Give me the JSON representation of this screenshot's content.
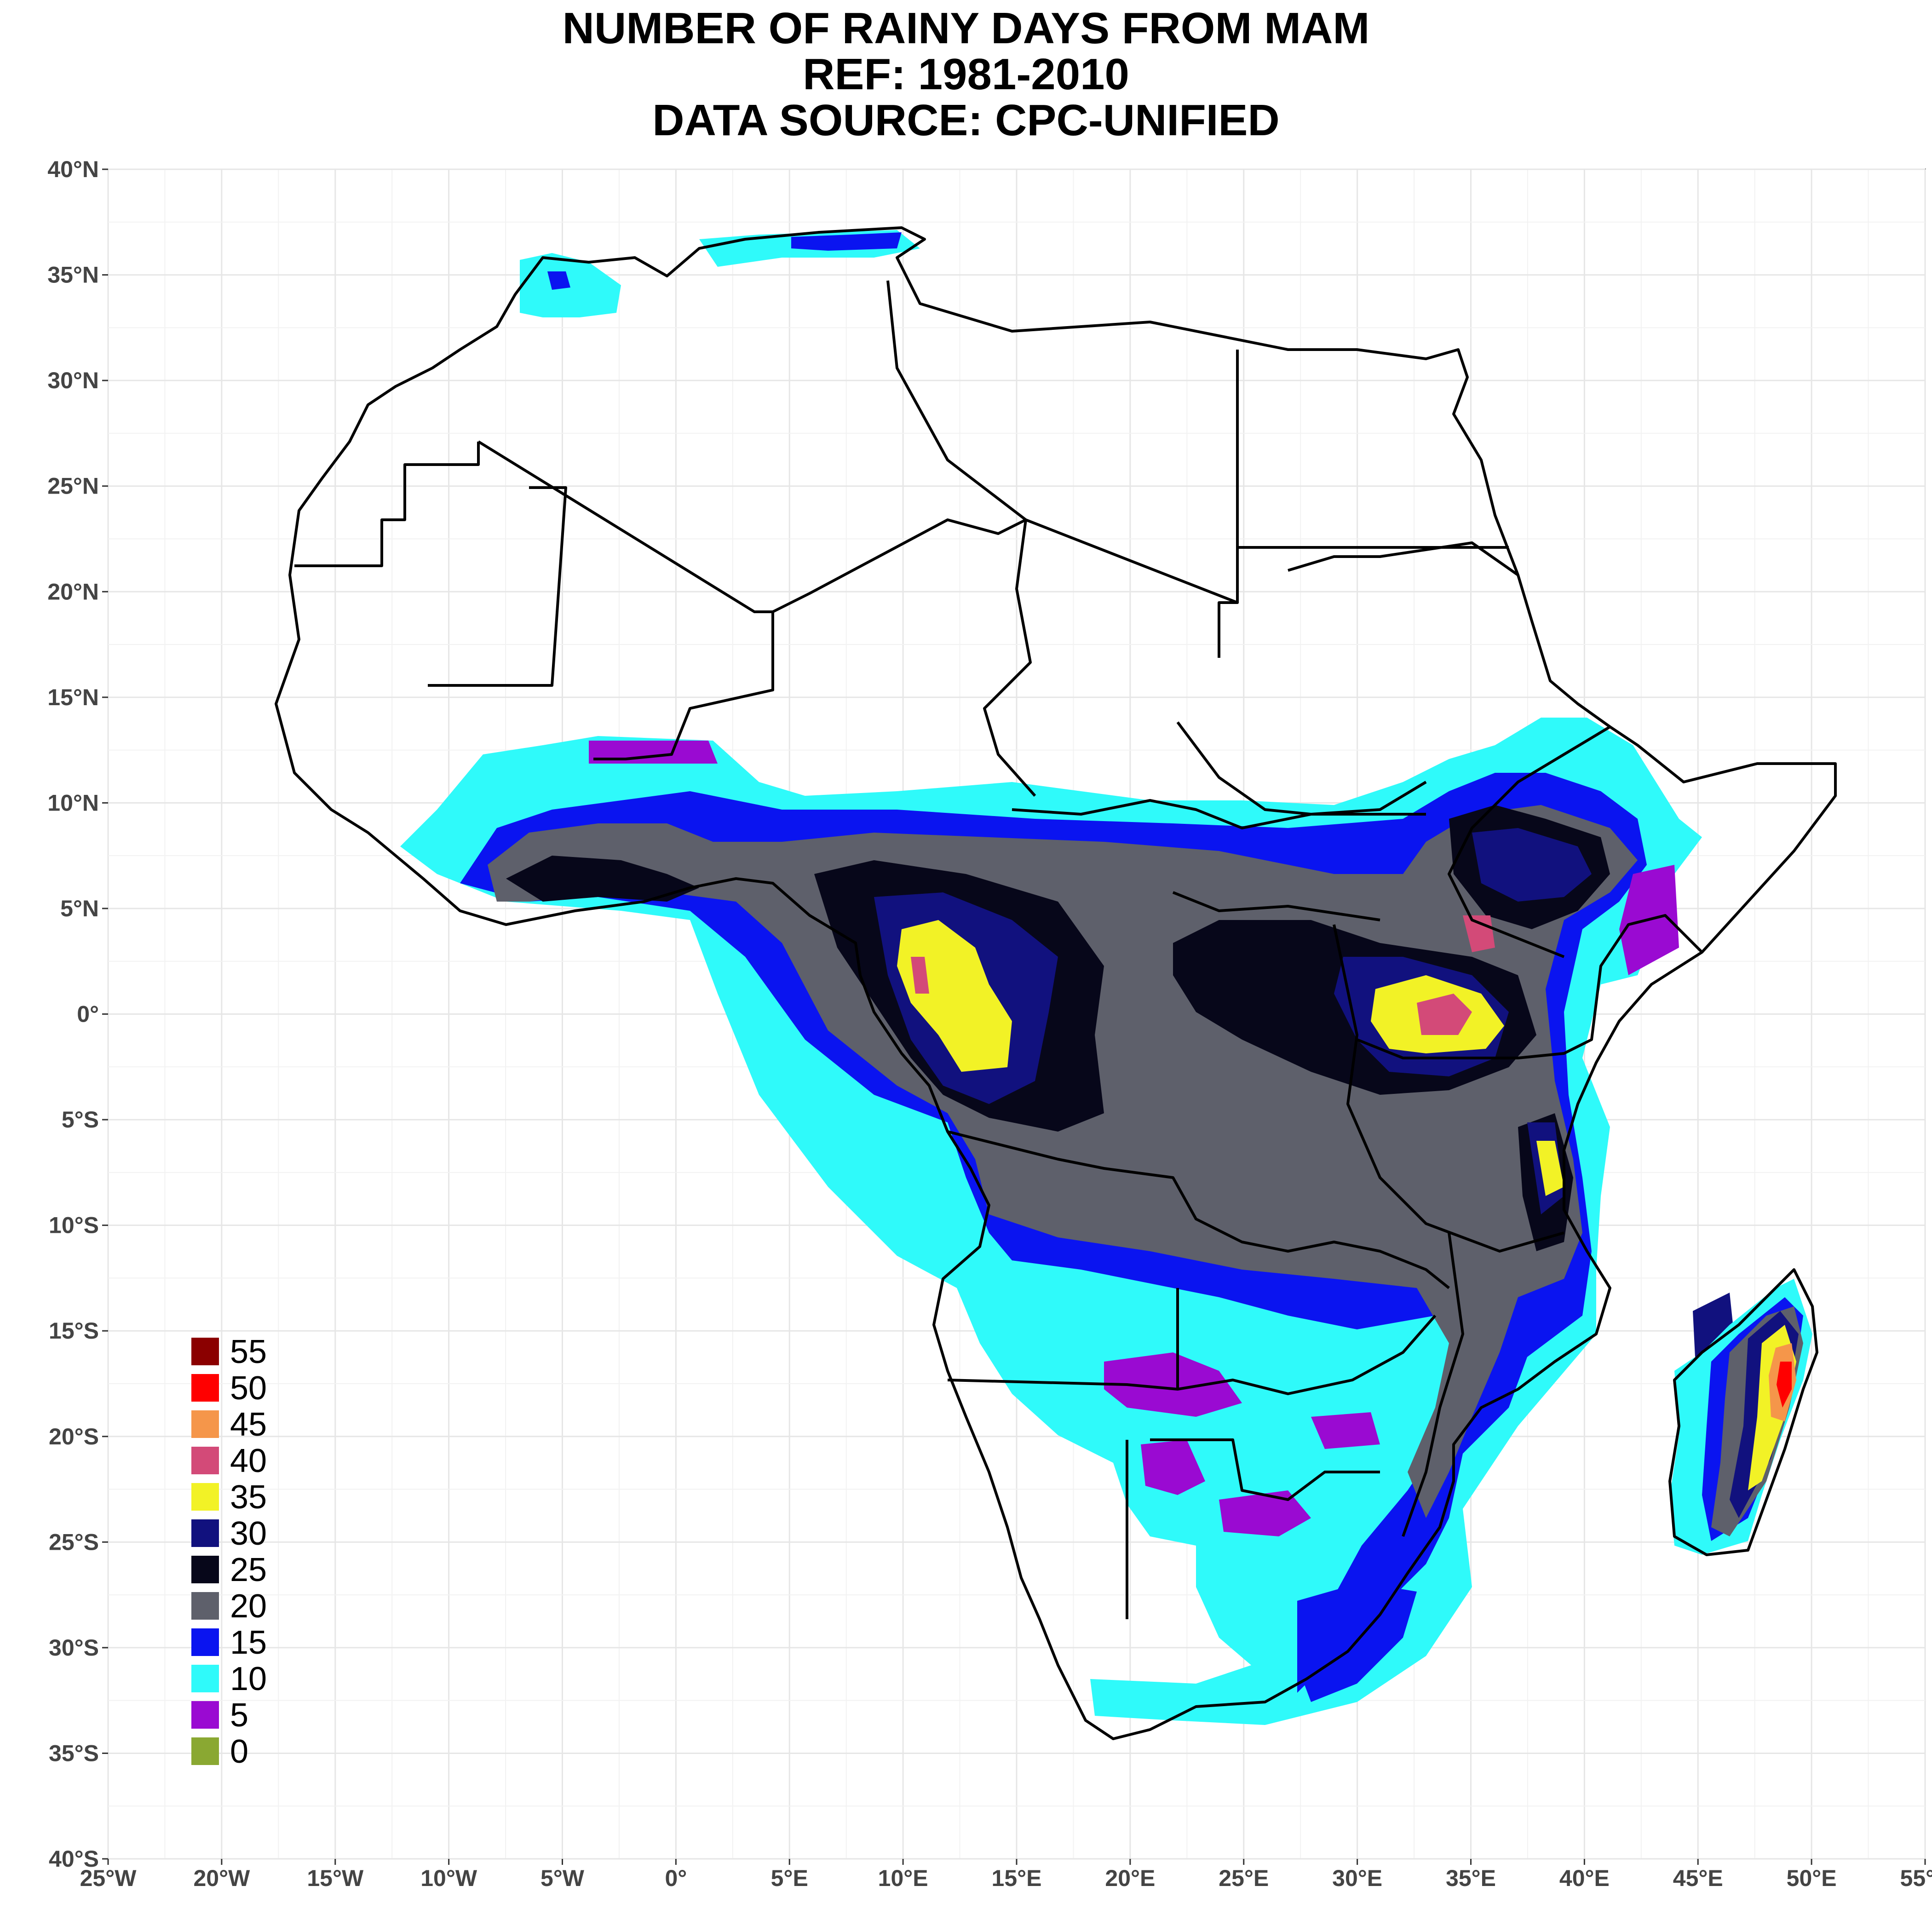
{
  "title": {
    "line1": "NUMBER OF RAINY DAYS FROM MAM",
    "line2": "REF: 1981-2010",
    "line3": "DATA SOURCE: CPC-UNIFIED"
  },
  "axes": {
    "lat_ticks": [
      "40°N",
      "35°N",
      "30°N",
      "25°N",
      "20°N",
      "15°N",
      "10°N",
      "5°N",
      "0°",
      "5°S",
      "10°S",
      "15°S",
      "20°S",
      "25°S",
      "30°S",
      "35°S",
      "40°S"
    ],
    "lon_ticks": [
      "25°W",
      "20°W",
      "15°W",
      "10°W",
      "5°W",
      "0°",
      "5°E",
      "10°E",
      "15°E",
      "20°E",
      "25°E",
      "30°E",
      "35°E",
      "40°E",
      "45°E",
      "50°E",
      "55°E"
    ],
    "lon_range": [
      -25,
      55
    ],
    "lat_range": [
      -40,
      40
    ],
    "grid": true
  },
  "legend": [
    {
      "label": "55",
      "color": "#8b0000"
    },
    {
      "label": "50",
      "color": "#ff0000"
    },
    {
      "label": "45",
      "color": "#f5964a"
    },
    {
      "label": "40",
      "color": "#d34a78"
    },
    {
      "label": "35",
      "color": "#f2f226"
    },
    {
      "label": "30",
      "color": "#11117e"
    },
    {
      "label": "25",
      "color": "#07071a"
    },
    {
      "label": "20",
      "color": "#5e606b"
    },
    {
      "label": "15",
      "color": "#0a14f0"
    },
    {
      "label": "10",
      "color": "#2ffafa"
    },
    {
      "label": "5",
      "color": "#9a0ad2"
    },
    {
      "label": "0",
      "color": "#8aa832"
    }
  ]
}
